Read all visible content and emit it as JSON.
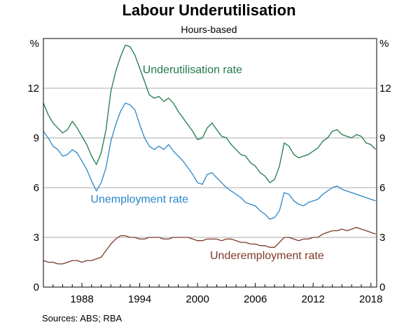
{
  "title": "Labour Underutilisation",
  "subtitle": "Hours-based",
  "source": "Sources:   ABS; RBA",
  "chart_data": {
    "type": "line",
    "title": "Labour Underutilisation",
    "subtitle": "Hours-based",
    "y_unit_left": "%",
    "y_unit_right": "%",
    "ylim": [
      0,
      15
    ],
    "xlim": [
      1984.0,
      2018.6
    ],
    "y_ticks": [
      0,
      3,
      6,
      9,
      12
    ],
    "y_tick_labels": [
      "0",
      "3",
      "6",
      "9",
      "12"
    ],
    "x_ticks": [
      1988,
      1994,
      2000,
      2006,
      2012,
      2018
    ],
    "x_tick_labels": [
      "1988",
      "1994",
      "2000",
      "2006",
      "2012",
      "2018"
    ],
    "grid": "horizontal",
    "series": [
      {
        "name": "Underutilisation rate",
        "color": "#1e7a46",
        "points": [
          [
            1984.0,
            11.1
          ],
          [
            1984.5,
            10.4
          ],
          [
            1985.0,
            9.9
          ],
          [
            1985.5,
            9.6
          ],
          [
            1986.0,
            9.3
          ],
          [
            1986.5,
            9.5
          ],
          [
            1987.0,
            10.0
          ],
          [
            1987.5,
            9.6
          ],
          [
            1988.0,
            9.1
          ],
          [
            1988.5,
            8.6
          ],
          [
            1989.0,
            7.9
          ],
          [
            1989.5,
            7.4
          ],
          [
            1990.0,
            8.1
          ],
          [
            1990.5,
            9.5
          ],
          [
            1991.0,
            11.8
          ],
          [
            1991.5,
            13.0
          ],
          [
            1992.0,
            13.9
          ],
          [
            1992.5,
            14.6
          ],
          [
            1993.0,
            14.5
          ],
          [
            1993.5,
            14.0
          ],
          [
            1994.0,
            13.2
          ],
          [
            1994.5,
            12.4
          ],
          [
            1995.0,
            11.6
          ],
          [
            1995.5,
            11.4
          ],
          [
            1996.0,
            11.5
          ],
          [
            1996.5,
            11.2
          ],
          [
            1997.0,
            11.4
          ],
          [
            1997.5,
            11.1
          ],
          [
            1998.0,
            10.6
          ],
          [
            1998.5,
            10.2
          ],
          [
            1999.0,
            9.8
          ],
          [
            1999.5,
            9.4
          ],
          [
            2000.0,
            8.9
          ],
          [
            2000.5,
            9.0
          ],
          [
            2001.0,
            9.6
          ],
          [
            2001.5,
            9.9
          ],
          [
            2002.0,
            9.5
          ],
          [
            2002.5,
            9.1
          ],
          [
            2003.0,
            9.0
          ],
          [
            2003.5,
            8.6
          ],
          [
            2004.0,
            8.3
          ],
          [
            2004.5,
            8.0
          ],
          [
            2005.0,
            7.9
          ],
          [
            2005.5,
            7.5
          ],
          [
            2006.0,
            7.3
          ],
          [
            2006.5,
            6.9
          ],
          [
            2007.0,
            6.7
          ],
          [
            2007.5,
            6.3
          ],
          [
            2008.0,
            6.5
          ],
          [
            2008.5,
            7.3
          ],
          [
            2009.0,
            8.7
          ],
          [
            2009.5,
            8.5
          ],
          [
            2010.0,
            8.0
          ],
          [
            2010.5,
            7.8
          ],
          [
            2011.0,
            7.9
          ],
          [
            2011.5,
            8.0
          ],
          [
            2012.0,
            8.2
          ],
          [
            2012.5,
            8.4
          ],
          [
            2013.0,
            8.8
          ],
          [
            2013.5,
            9.0
          ],
          [
            2014.0,
            9.4
          ],
          [
            2014.5,
            9.5
          ],
          [
            2015.0,
            9.2
          ],
          [
            2015.5,
            9.1
          ],
          [
            2016.0,
            9.0
          ],
          [
            2016.5,
            9.2
          ],
          [
            2017.0,
            9.1
          ],
          [
            2017.5,
            8.7
          ],
          [
            2018.0,
            8.6
          ],
          [
            2018.5,
            8.3
          ]
        ]
      },
      {
        "name": "Unemployment rate",
        "color": "#2a86c8",
        "points": [
          [
            1984.0,
            9.4
          ],
          [
            1984.5,
            9.0
          ],
          [
            1985.0,
            8.5
          ],
          [
            1985.5,
            8.3
          ],
          [
            1986.0,
            7.9
          ],
          [
            1986.5,
            8.0
          ],
          [
            1987.0,
            8.3
          ],
          [
            1987.5,
            8.1
          ],
          [
            1988.0,
            7.6
          ],
          [
            1988.5,
            7.1
          ],
          [
            1989.0,
            6.4
          ],
          [
            1989.5,
            5.8
          ],
          [
            1990.0,
            6.3
          ],
          [
            1990.5,
            7.2
          ],
          [
            1991.0,
            8.8
          ],
          [
            1991.5,
            9.8
          ],
          [
            1992.0,
            10.6
          ],
          [
            1992.5,
            11.1
          ],
          [
            1993.0,
            11.0
          ],
          [
            1993.5,
            10.7
          ],
          [
            1994.0,
            9.8
          ],
          [
            1994.5,
            9.0
          ],
          [
            1995.0,
            8.5
          ],
          [
            1995.5,
            8.3
          ],
          [
            1996.0,
            8.5
          ],
          [
            1996.5,
            8.3
          ],
          [
            1997.0,
            8.6
          ],
          [
            1997.5,
            8.2
          ],
          [
            1998.0,
            7.9
          ],
          [
            1998.5,
            7.6
          ],
          [
            1999.0,
            7.2
          ],
          [
            1999.5,
            6.8
          ],
          [
            2000.0,
            6.3
          ],
          [
            2000.5,
            6.2
          ],
          [
            2001.0,
            6.8
          ],
          [
            2001.5,
            6.9
          ],
          [
            2002.0,
            6.6
          ],
          [
            2002.5,
            6.3
          ],
          [
            2003.0,
            6.0
          ],
          [
            2003.5,
            5.8
          ],
          [
            2004.0,
            5.6
          ],
          [
            2004.5,
            5.4
          ],
          [
            2005.0,
            5.1
          ],
          [
            2005.5,
            5.0
          ],
          [
            2006.0,
            4.9
          ],
          [
            2006.5,
            4.6
          ],
          [
            2007.0,
            4.4
          ],
          [
            2007.5,
            4.1
          ],
          [
            2008.0,
            4.2
          ],
          [
            2008.5,
            4.6
          ],
          [
            2009.0,
            5.7
          ],
          [
            2009.5,
            5.6
          ],
          [
            2010.0,
            5.2
          ],
          [
            2010.5,
            5.0
          ],
          [
            2011.0,
            4.9
          ],
          [
            2011.5,
            5.1
          ],
          [
            2012.0,
            5.2
          ],
          [
            2012.5,
            5.3
          ],
          [
            2013.0,
            5.6
          ],
          [
            2013.5,
            5.8
          ],
          [
            2014.0,
            6.0
          ],
          [
            2014.5,
            6.1
          ],
          [
            2015.0,
            5.9
          ],
          [
            2015.5,
            5.8
          ],
          [
            2016.0,
            5.7
          ],
          [
            2016.5,
            5.6
          ],
          [
            2017.0,
            5.5
          ],
          [
            2017.5,
            5.4
          ],
          [
            2018.0,
            5.3
          ],
          [
            2018.5,
            5.2
          ]
        ]
      },
      {
        "name": "Underemployment rate",
        "color": "#7b3a28",
        "points": [
          [
            1984.0,
            1.6
          ],
          [
            1984.5,
            1.5
          ],
          [
            1985.0,
            1.5
          ],
          [
            1985.5,
            1.4
          ],
          [
            1986.0,
            1.4
          ],
          [
            1986.5,
            1.5
          ],
          [
            1987.0,
            1.6
          ],
          [
            1987.5,
            1.6
          ],
          [
            1988.0,
            1.5
          ],
          [
            1988.5,
            1.6
          ],
          [
            1989.0,
            1.6
          ],
          [
            1989.5,
            1.7
          ],
          [
            1990.0,
            1.8
          ],
          [
            1990.5,
            2.2
          ],
          [
            1991.0,
            2.6
          ],
          [
            1991.5,
            2.9
          ],
          [
            1992.0,
            3.1
          ],
          [
            1992.5,
            3.1
          ],
          [
            1993.0,
            3.0
          ],
          [
            1993.5,
            3.0
          ],
          [
            1994.0,
            2.9
          ],
          [
            1994.5,
            2.9
          ],
          [
            1995.0,
            3.0
          ],
          [
            1995.5,
            3.0
          ],
          [
            1996.0,
            3.0
          ],
          [
            1996.5,
            2.9
          ],
          [
            1997.0,
            2.9
          ],
          [
            1997.5,
            3.0
          ],
          [
            1998.0,
            3.0
          ],
          [
            1998.5,
            3.0
          ],
          [
            1999.0,
            3.0
          ],
          [
            1999.5,
            2.9
          ],
          [
            2000.0,
            2.8
          ],
          [
            2000.5,
            2.8
          ],
          [
            2001.0,
            2.9
          ],
          [
            2001.5,
            2.9
          ],
          [
            2002.0,
            2.9
          ],
          [
            2002.5,
            2.8
          ],
          [
            2003.0,
            2.9
          ],
          [
            2003.5,
            2.9
          ],
          [
            2004.0,
            2.8
          ],
          [
            2004.5,
            2.7
          ],
          [
            2005.0,
            2.7
          ],
          [
            2005.5,
            2.6
          ],
          [
            2006.0,
            2.6
          ],
          [
            2006.5,
            2.5
          ],
          [
            2007.0,
            2.5
          ],
          [
            2007.5,
            2.4
          ],
          [
            2008.0,
            2.4
          ],
          [
            2008.5,
            2.7
          ],
          [
            2009.0,
            3.0
          ],
          [
            2009.5,
            3.0
          ],
          [
            2010.0,
            2.9
          ],
          [
            2010.5,
            2.8
          ],
          [
            2011.0,
            2.9
          ],
          [
            2011.5,
            2.9
          ],
          [
            2012.0,
            3.0
          ],
          [
            2012.5,
            3.0
          ],
          [
            2013.0,
            3.2
          ],
          [
            2013.5,
            3.3
          ],
          [
            2014.0,
            3.4
          ],
          [
            2014.5,
            3.4
          ],
          [
            2015.0,
            3.5
          ],
          [
            2015.5,
            3.4
          ],
          [
            2016.0,
            3.5
          ],
          [
            2016.5,
            3.6
          ],
          [
            2017.0,
            3.5
          ],
          [
            2017.5,
            3.4
          ],
          [
            2018.0,
            3.3
          ],
          [
            2018.5,
            3.2
          ]
        ]
      }
    ],
    "series_label_anchors": [
      {
        "series": 0,
        "x": 1994.3,
        "y": 12.9,
        "anchor": "start"
      },
      {
        "series": 1,
        "x": 1988.9,
        "y": 5.1,
        "anchor": "start"
      },
      {
        "series": 2,
        "x": 2001.3,
        "y": 1.7,
        "anchor": "start"
      }
    ]
  }
}
